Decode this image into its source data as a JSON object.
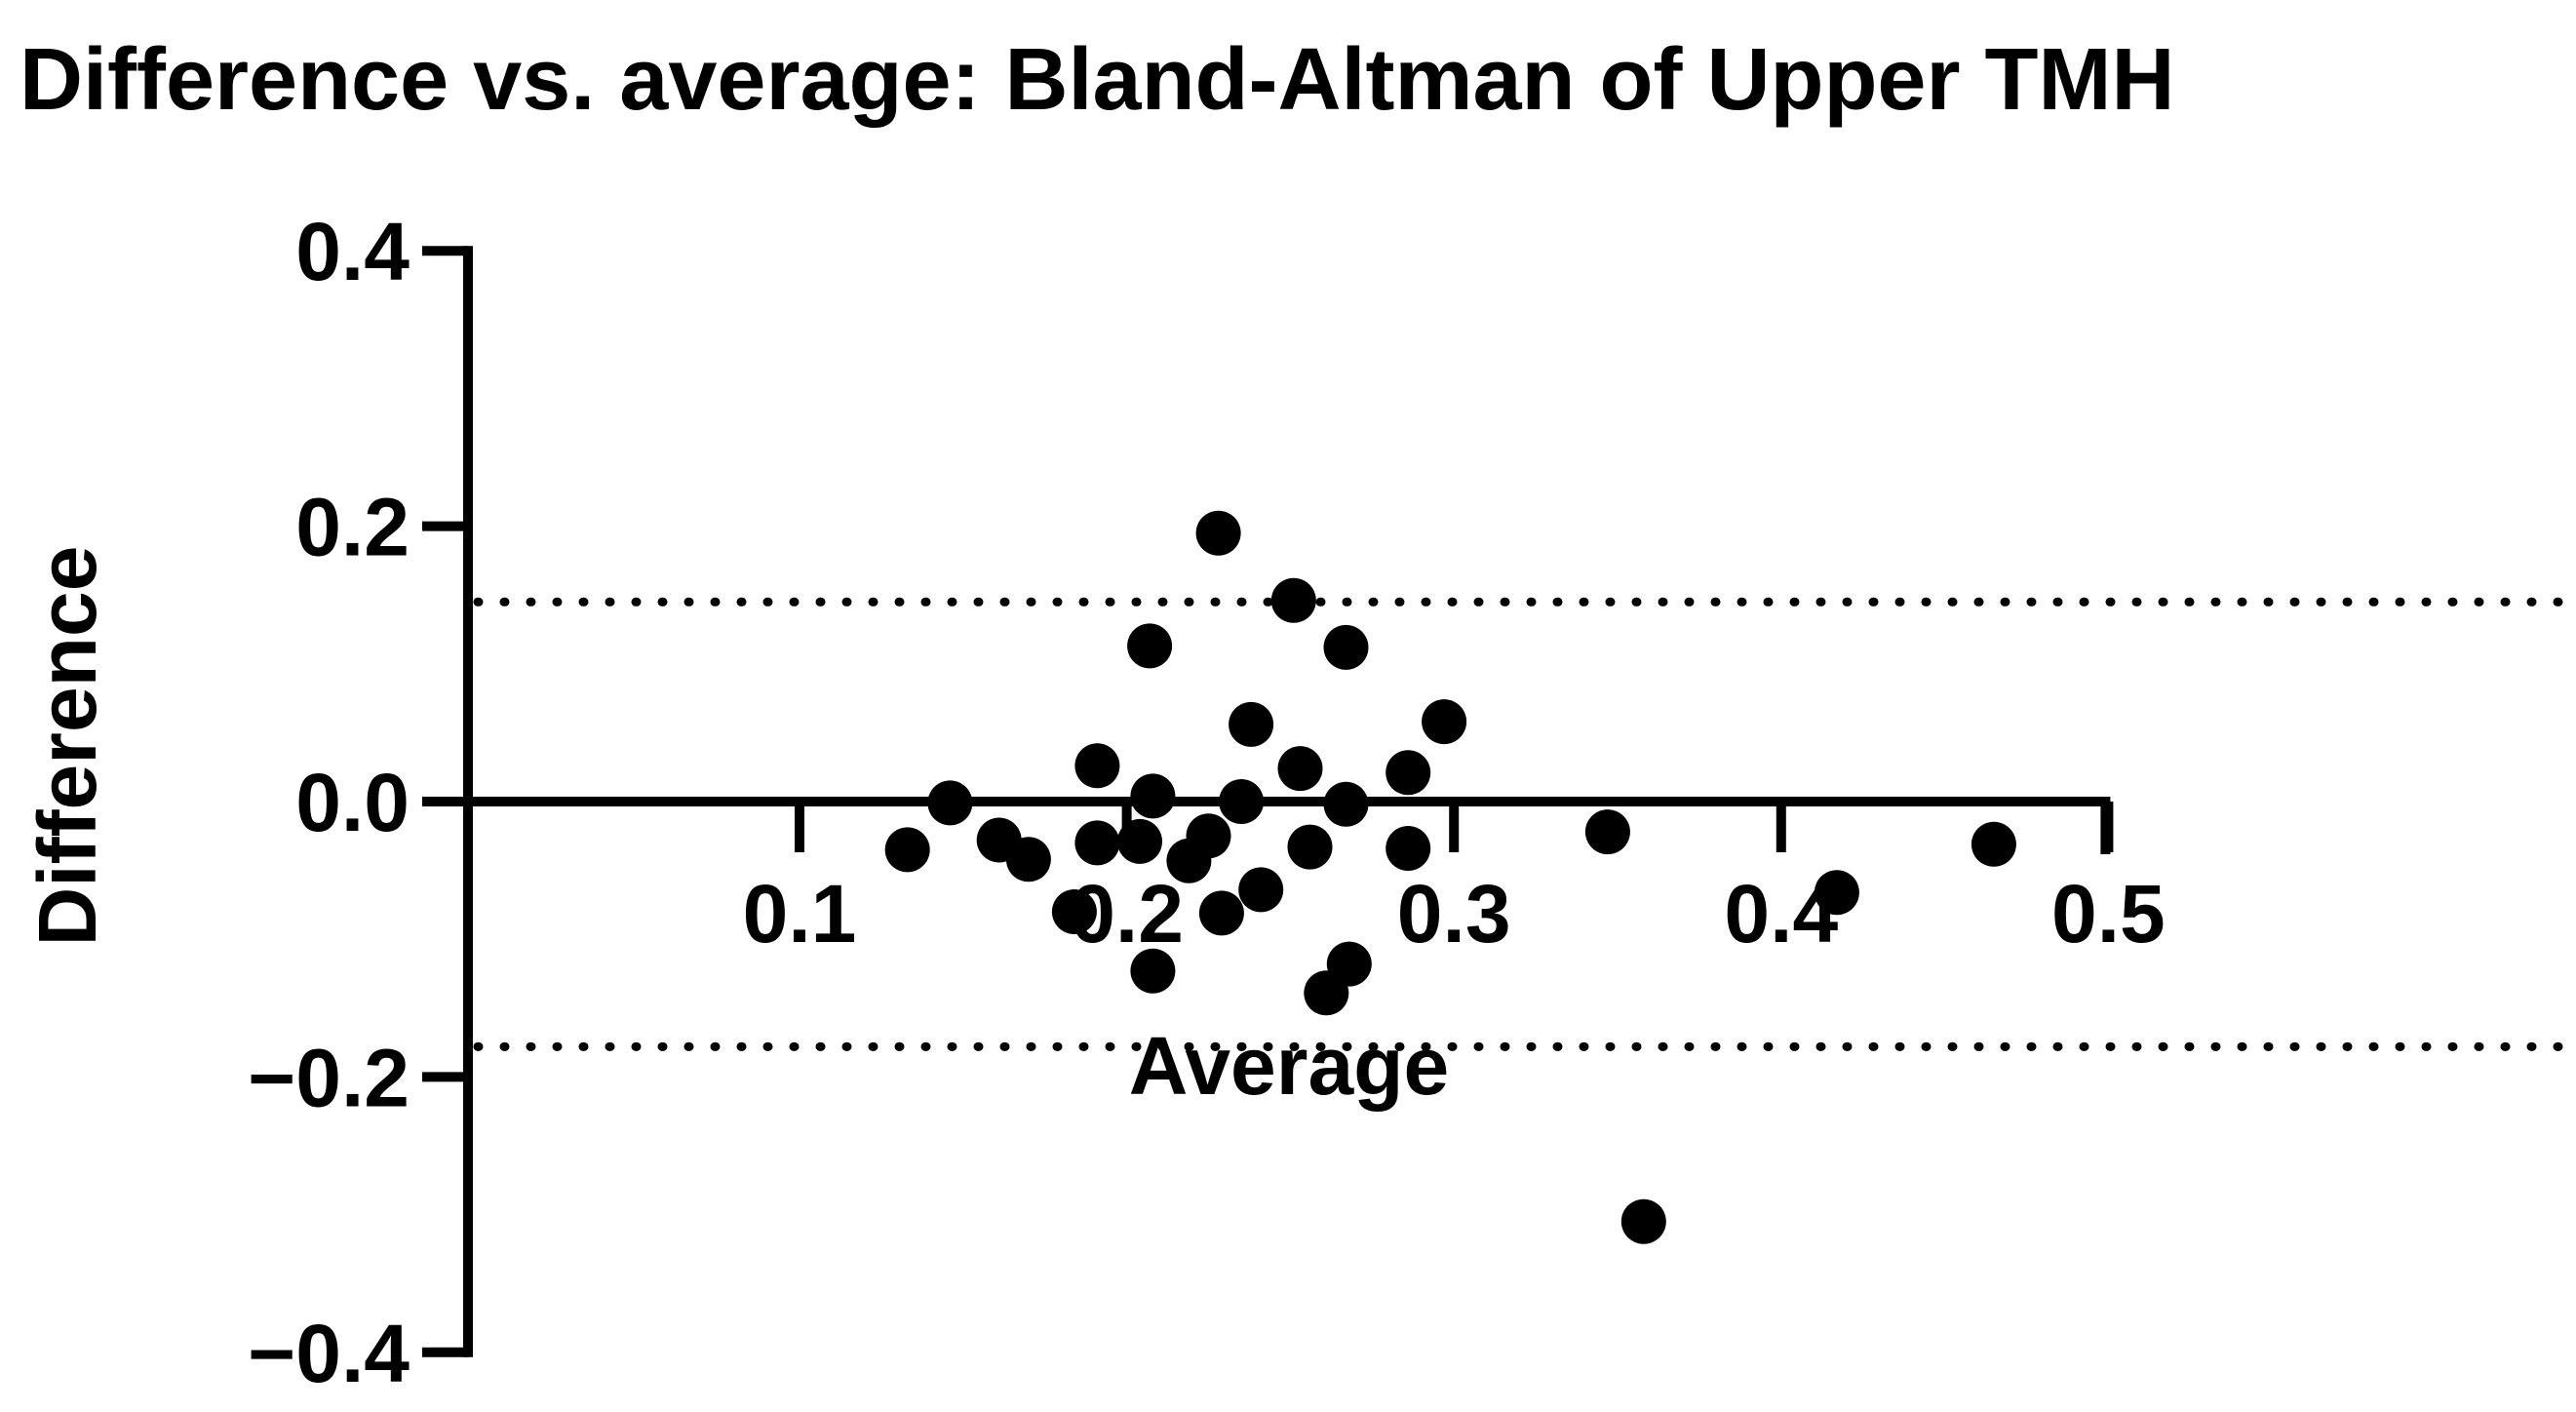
{
  "chart_data": {
    "type": "scatter",
    "title": "Difference vs. average: Bland-Altman of Upper TMH",
    "xlabel": "Average",
    "ylabel": "Difference",
    "xlim": [
      0.0,
      0.503
    ],
    "ylim": [
      -0.4,
      0.4
    ],
    "x_ticks": [
      0.1,
      0.2,
      0.3,
      0.4,
      0.5
    ],
    "x_tick_labels": [
      "0.1",
      "0.2",
      "0.3",
      "0.4",
      "0.5"
    ],
    "y_ticks": [
      0.4,
      0.2,
      0.0,
      -0.2,
      -0.4
    ],
    "y_tick_labels": [
      "0.4",
      "0.2",
      "0.0",
      "−0.2",
      "−0.4"
    ],
    "grid": false,
    "legend": "none",
    "marker_color": "#000000",
    "axis_color": "#000000",
    "zero_line": 0.0,
    "loa_upper": 0.145,
    "loa_lower": -0.178,
    "loa_style": "dotted",
    "points": [
      [
        0.228,
        0.195
      ],
      [
        0.251,
        0.146
      ],
      [
        0.207,
        0.113
      ],
      [
        0.267,
        0.112
      ],
      [
        0.238,
        0.056
      ],
      [
        0.297,
        0.058
      ],
      [
        0.191,
        0.026
      ],
      [
        0.253,
        0.024
      ],
      [
        0.286,
        0.021
      ],
      [
        0.146,
        -0.001
      ],
      [
        0.208,
        0.004
      ],
      [
        0.235,
        0.0
      ],
      [
        0.267,
        -0.002
      ],
      [
        0.133,
        -0.035
      ],
      [
        0.161,
        -0.028
      ],
      [
        0.17,
        -0.042
      ],
      [
        0.191,
        -0.03
      ],
      [
        0.204,
        -0.029
      ],
      [
        0.219,
        -0.043
      ],
      [
        0.225,
        -0.025
      ],
      [
        0.256,
        -0.033
      ],
      [
        0.286,
        -0.034
      ],
      [
        0.347,
        -0.022
      ],
      [
        0.465,
        -0.031
      ],
      [
        0.417,
        -0.066
      ],
      [
        0.184,
        -0.08
      ],
      [
        0.229,
        -0.081
      ],
      [
        0.241,
        -0.064
      ],
      [
        0.208,
        -0.123
      ],
      [
        0.268,
        -0.118
      ],
      [
        0.261,
        -0.139
      ],
      [
        0.358,
        -0.305
      ]
    ]
  }
}
